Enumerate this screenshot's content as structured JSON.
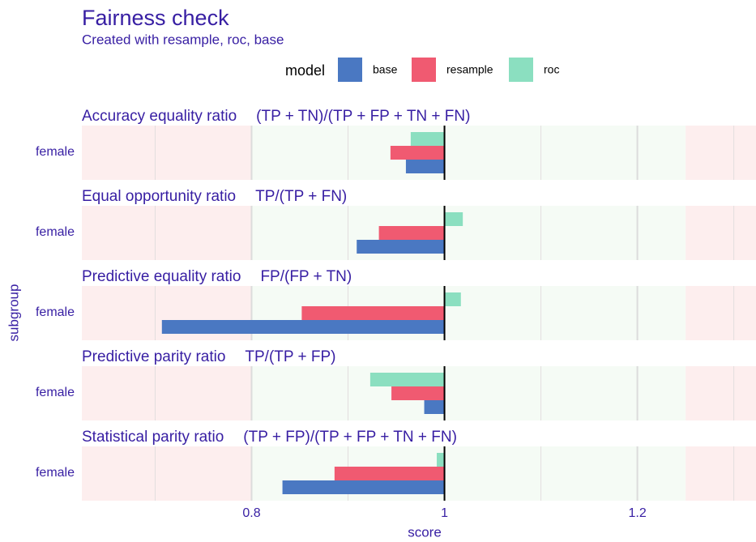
{
  "chart_data": {
    "type": "bar",
    "title": "Fairness check",
    "subtitle": "Created with resample, roc, base",
    "legend_title": "model",
    "panels": [
      {
        "title": "Accuracy equality ratio",
        "formula": "(TP + TN)/(TP + FP + TN + FN)",
        "subgroup": "female"
      },
      {
        "title": "Equal opportunity ratio",
        "formula": "TP/(TP + FN)",
        "subgroup": "female"
      },
      {
        "title": "Predictive equality ratio",
        "formula": "FP/(FP + TN)",
        "subgroup": "female"
      },
      {
        "title": "Predictive parity ratio",
        "formula": "TP/(TP + FP)",
        "subgroup": "female"
      },
      {
        "title": "Statistical parity ratio",
        "formula": "(TP + FP)/(TP + FP + TN + FN)",
        "subgroup": "female"
      }
    ],
    "series": [
      {
        "name": "base",
        "color": "#4a78c2",
        "values": [
          0.96,
          0.909,
          0.707,
          0.979,
          0.832
        ]
      },
      {
        "name": "resample",
        "color": "#f05a71",
        "values": [
          0.944,
          0.932,
          0.852,
          0.945,
          0.886
        ]
      },
      {
        "name": "roc",
        "color": "#8bdfc0",
        "values": [
          0.965,
          1.019,
          1.017,
          0.923,
          0.992
        ]
      }
    ],
    "reference": 1,
    "fair_range": [
      0.8,
      1.25
    ],
    "xlim": [
      0.624,
      1.323
    ],
    "xticks": [
      0.8,
      1,
      1.2
    ],
    "minor_xticks": [
      0.7,
      0.9,
      1.1,
      1.3
    ],
    "xlabel": "score",
    "ylabel": "subgroup"
  }
}
